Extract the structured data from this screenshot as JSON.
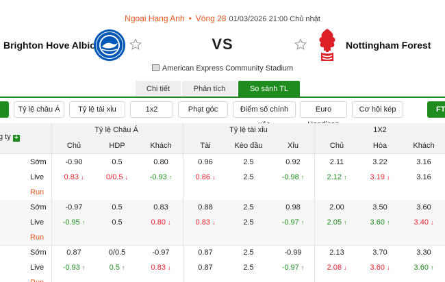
{
  "header": {
    "league": "Ngoại Hạng Anh",
    "separator": "•",
    "round": "Vòng 28",
    "datetime": "01/03/2026 21:00 Chủ nhật",
    "vs": "VS",
    "stadium": "American Express Community Stadium",
    "home_team": {
      "name": "Brighton Hove Albion",
      "logo_color": "#0057b8"
    },
    "away_team": {
      "name": "Nottingham Forest",
      "logo_color": "#dd1f26"
    }
  },
  "tabs": [
    {
      "label": "Chi tiết",
      "active": false
    },
    {
      "label": "Phân tích",
      "active": false
    },
    {
      "label": "So sánh TL",
      "active": true
    }
  ],
  "filters": [
    "Tỷ lệ châu Á",
    "Tỷ lệ tài xỉu",
    "1x2",
    "Phạt góc",
    "Điểm số chính xác",
    "Euro Handicap",
    "Cơ hội kép"
  ],
  "filters_right_label": "FT",
  "table": {
    "left_header": "g ty",
    "groups": [
      "Tỷ lệ Châu Á",
      "Tỷ lệ tài xỉu",
      "1X2"
    ],
    "columns": [
      "Chủ",
      "HDP",
      "Khách",
      "Tài",
      "Kèo đầu",
      "Xỉu",
      "Chủ",
      "Hòa",
      "Khách"
    ],
    "rows": [
      {
        "label": "Sớm",
        "shade": false,
        "cells": [
          {
            "v": "-0.90",
            "c": ""
          },
          {
            "v": "0.5",
            "c": ""
          },
          {
            "v": "0.80",
            "c": ""
          },
          {
            "v": "0.96",
            "c": ""
          },
          {
            "v": "2.5",
            "c": ""
          },
          {
            "v": "0.92",
            "c": ""
          },
          {
            "v": "2.11",
            "c": ""
          },
          {
            "v": "3.22",
            "c": ""
          },
          {
            "v": "3.16",
            "c": ""
          }
        ]
      },
      {
        "label": "Live",
        "shade": false,
        "cells": [
          {
            "v": "0.83",
            "c": "red",
            "a": "↓"
          },
          {
            "v": "0/0.5",
            "c": "red",
            "a": "↓"
          },
          {
            "v": "-0.93",
            "c": "green",
            "a": "↑"
          },
          {
            "v": "0.86",
            "c": "red",
            "a": "↓"
          },
          {
            "v": "2.5",
            "c": ""
          },
          {
            "v": "-0.98",
            "c": "green",
            "a": "↑"
          },
          {
            "v": "2.12",
            "c": "green",
            "a": "↑"
          },
          {
            "v": "3.19",
            "c": "red",
            "a": "↓"
          },
          {
            "v": "3.16",
            "c": ""
          }
        ]
      },
      {
        "label": "Run",
        "shade": false,
        "run": true,
        "cells": []
      },
      {
        "label": "Sớm",
        "shade": true,
        "cells": [
          {
            "v": "-0.97",
            "c": ""
          },
          {
            "v": "0.5",
            "c": ""
          },
          {
            "v": "0.83",
            "c": ""
          },
          {
            "v": "0.88",
            "c": ""
          },
          {
            "v": "2.5",
            "c": ""
          },
          {
            "v": "0.98",
            "c": ""
          },
          {
            "v": "2.00",
            "c": ""
          },
          {
            "v": "3.50",
            "c": ""
          },
          {
            "v": "3.60",
            "c": ""
          }
        ]
      },
      {
        "label": "Live",
        "shade": true,
        "cells": [
          {
            "v": "-0.95",
            "c": "green",
            "a": "↑"
          },
          {
            "v": "0.5",
            "c": ""
          },
          {
            "v": "0.80",
            "c": "red",
            "a": "↓"
          },
          {
            "v": "0.83",
            "c": "red",
            "a": "↓"
          },
          {
            "v": "2.5",
            "c": ""
          },
          {
            "v": "-0.97",
            "c": "green",
            "a": "↑"
          },
          {
            "v": "2.05",
            "c": "green",
            "a": "↑"
          },
          {
            "v": "3.60",
            "c": "green",
            "a": "↑"
          },
          {
            "v": "3.40",
            "c": "red",
            "a": "↓"
          }
        ]
      },
      {
        "label": "Run",
        "shade": true,
        "run": true,
        "cells": []
      },
      {
        "label": "Sớm",
        "shade": false,
        "cells": [
          {
            "v": "0.87",
            "c": ""
          },
          {
            "v": "0/0.5",
            "c": ""
          },
          {
            "v": "-0.97",
            "c": ""
          },
          {
            "v": "0.87",
            "c": ""
          },
          {
            "v": "2.5",
            "c": ""
          },
          {
            "v": "-0.99",
            "c": ""
          },
          {
            "v": "2.13",
            "c": ""
          },
          {
            "v": "3.70",
            "c": ""
          },
          {
            "v": "3.30",
            "c": ""
          }
        ]
      },
      {
        "label": "Live",
        "shade": false,
        "cells": [
          {
            "v": "-0.93",
            "c": "green",
            "a": "↑"
          },
          {
            "v": "0.5",
            "c": "green",
            "a": "↑"
          },
          {
            "v": "0.83",
            "c": "red",
            "a": "↓"
          },
          {
            "v": "0.87",
            "c": ""
          },
          {
            "v": "2.5",
            "c": ""
          },
          {
            "v": "-0.97",
            "c": "green",
            "a": "↑"
          },
          {
            "v": "2.08",
            "c": "red",
            "a": "↓"
          },
          {
            "v": "3.60",
            "c": "red",
            "a": "↓"
          },
          {
            "v": "3.60",
            "c": "green",
            "a": "↑"
          }
        ]
      },
      {
        "label": "Run",
        "shade": false,
        "run": true,
        "cells": []
      }
    ]
  },
  "colors": {
    "accent_green": "#1e8c1e",
    "up_green": "#1e8c1e",
    "down_red": "#e8232e",
    "league_orange": "#e8541e"
  }
}
